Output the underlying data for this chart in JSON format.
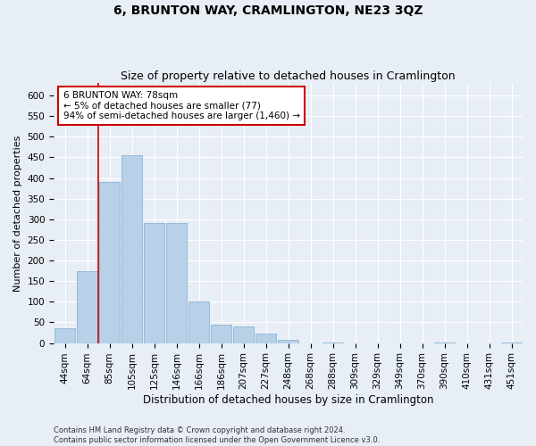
{
  "title": "6, BRUNTON WAY, CRAMLINGTON, NE23 3QZ",
  "subtitle": "Size of property relative to detached houses in Cramlington",
  "xlabel": "Distribution of detached houses by size in Cramlington",
  "ylabel": "Number of detached properties",
  "categories": [
    "44sqm",
    "64sqm",
    "85sqm",
    "105sqm",
    "125sqm",
    "146sqm",
    "166sqm",
    "186sqm",
    "207sqm",
    "227sqm",
    "248sqm",
    "268sqm",
    "288sqm",
    "309sqm",
    "329sqm",
    "349sqm",
    "370sqm",
    "390sqm",
    "410sqm",
    "431sqm",
    "451sqm"
  ],
  "values": [
    35,
    175,
    390,
    455,
    290,
    290,
    100,
    45,
    40,
    22,
    8,
    0,
    2,
    0,
    0,
    0,
    0,
    2,
    0,
    0,
    2
  ],
  "bar_color": "#b8d0e8",
  "bar_edge_color": "#7aaece",
  "property_line_x": 1.48,
  "property_line_color": "#cc0000",
  "annotation_text": "6 BRUNTON WAY: 78sqm\n← 5% of detached houses are smaller (77)\n94% of semi-detached houses are larger (1,460) →",
  "annotation_box_color": "#cc0000",
  "ylim": [
    0,
    630
  ],
  "yticks": [
    0,
    50,
    100,
    150,
    200,
    250,
    300,
    350,
    400,
    450,
    500,
    550,
    600
  ],
  "footer_line1": "Contains HM Land Registry data © Crown copyright and database right 2024.",
  "footer_line2": "Contains public sector information licensed under the Open Government Licence v3.0.",
  "background_color": "#e8eef5",
  "plot_background_color": "#e8eef5",
  "grid_color": "#ffffff",
  "title_fontsize": 10,
  "subtitle_fontsize": 9,
  "xlabel_fontsize": 8.5,
  "ylabel_fontsize": 8,
  "tick_fontsize": 7.5,
  "footer_fontsize": 6.0
}
